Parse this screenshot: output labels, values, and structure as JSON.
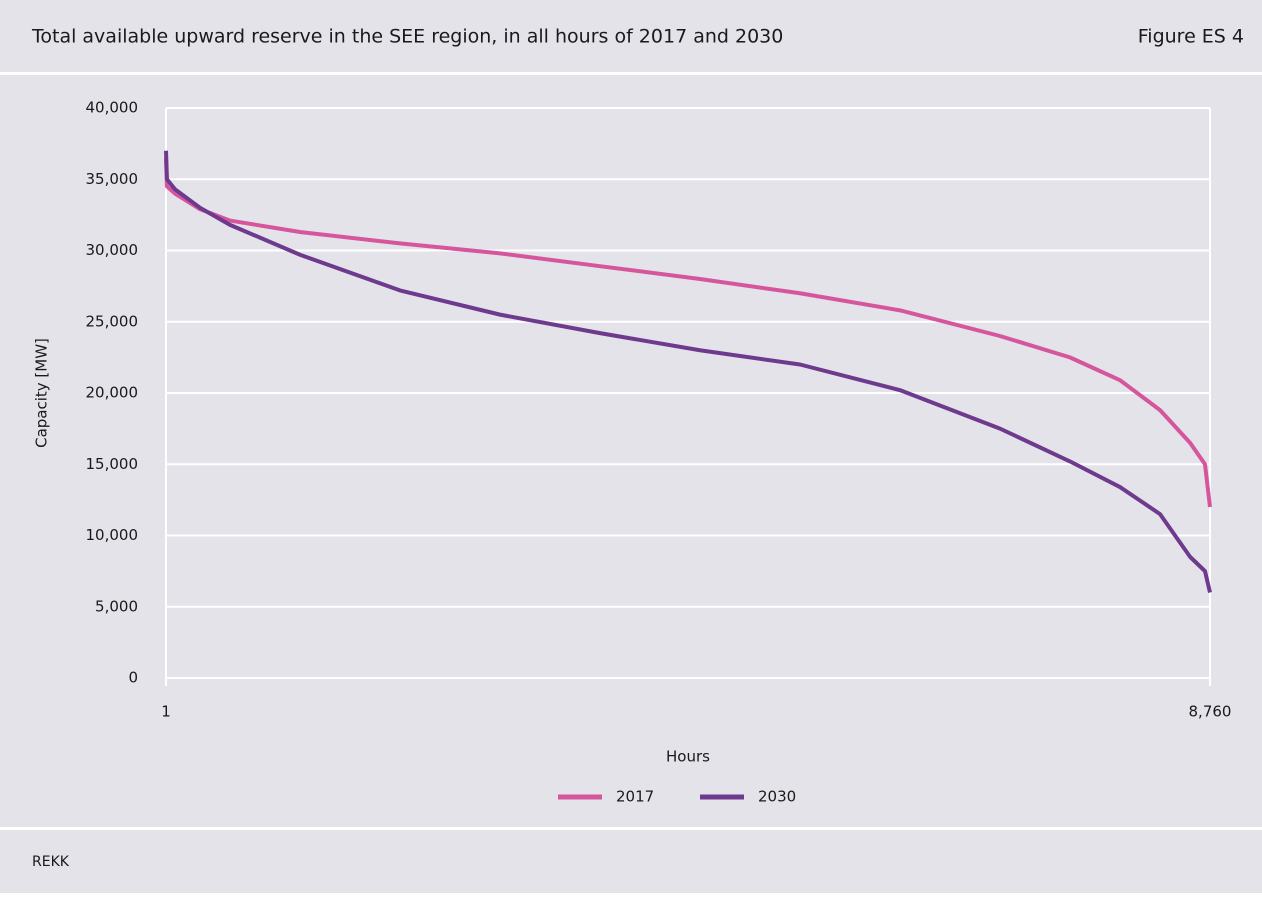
{
  "chart_data": {
    "type": "line",
    "title": "Total available upward reserve in the SEE region, in all hours of 2017 and 2030",
    "figure_label": "Figure ES 4",
    "source": "REKK",
    "y_label": "Capacity [MW]",
    "x_label": "Hours",
    "x": [
      1,
      9,
      76,
      286,
      538,
      1125,
      1964,
      2803,
      3642,
      4481,
      5320,
      6159,
      6998,
      7585,
      8005,
      8341,
      8593,
      8718,
      8760
    ],
    "series": [
      {
        "name": "2017",
        "color": "#d6569d",
        "values": [
          36500,
          34500,
          34000,
          32900,
          32100,
          31300,
          30500,
          29800,
          28900,
          28000,
          27000,
          25800,
          24000,
          22500,
          20900,
          18800,
          16500,
          15000,
          12000
        ]
      },
      {
        "name": "2030",
        "color": "#6e3a8e",
        "values": [
          37000,
          35000,
          34300,
          33000,
          31800,
          29700,
          27200,
          25500,
          24200,
          23000,
          22000,
          20200,
          17500,
          15200,
          13400,
          11500,
          8500,
          7500,
          6000
        ]
      }
    ],
    "xlim": [
      1,
      8760
    ],
    "xticks": [
      1,
      {
        "value": 8760,
        "label": "8,760"
      }
    ],
    "ylim": [
      0,
      40000
    ],
    "yticks": [
      0,
      {
        "value": 5000,
        "label": "5,000"
      },
      {
        "value": 10000,
        "label": "10,000"
      },
      {
        "value": 15000,
        "label": "15,000"
      },
      {
        "value": 20000,
        "label": "20,000"
      },
      {
        "value": 25000,
        "label": "25,000"
      },
      {
        "value": 30000,
        "label": "30,000"
      },
      {
        "value": 35000,
        "label": "35,000"
      },
      {
        "value": 40000,
        "label": "40,000"
      }
    ],
    "grid": true,
    "legend": "bottom"
  }
}
